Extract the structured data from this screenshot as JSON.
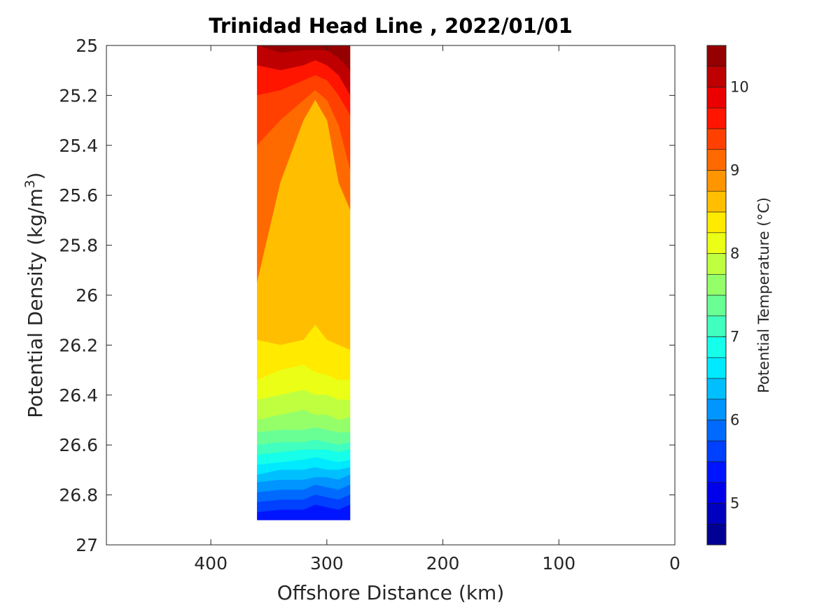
{
  "chart_data": {
    "type": "heatmap",
    "subtype": "filled-contour",
    "title": "Trinidad Head Line , 2022/01/01",
    "xlabel": "Offshore Distance (km)",
    "ylabel": "Potential Density (kg/m",
    "ylabel_superscript": "3",
    "ylabel_suffix": ")",
    "xlim": [
      490,
      0
    ],
    "ylim": [
      25,
      27
    ],
    "x_reversed": true,
    "y_reversed": true,
    "xticks": [
      400,
      300,
      200,
      100,
      0
    ],
    "yticks": [
      25,
      25.2,
      25.4,
      25.6,
      25.8,
      26,
      26.2,
      26.4,
      26.6,
      26.8,
      27
    ],
    "xticklabels": [
      "400",
      "300",
      "200",
      "100",
      "0"
    ],
    "yticklabels": [
      "25",
      "25.2",
      "25.4",
      "25.6",
      "25.8",
      "26",
      "26.2",
      "26.4",
      "26.6",
      "26.8",
      "27"
    ],
    "data_extent": {
      "x": [
        360,
        280
      ],
      "y": [
        25,
        26.9
      ]
    },
    "colorbar": {
      "label": "Potential Temperature (°C)",
      "range": [
        4.5,
        10.5
      ],
      "step": 0.25,
      "ticks": [
        5,
        6,
        7,
        8,
        9,
        10
      ],
      "ticklabels": [
        "5",
        "6",
        "7",
        "8",
        "9",
        "10"
      ],
      "colormap": "jet"
    },
    "grid": false,
    "contour_fields": [
      {
        "levels_top_to_bottom": [
          10.4,
          10.0,
          9.7,
          9.3,
          9.0,
          8.7,
          8.5,
          8.25,
          8.05,
          7.8,
          7.55,
          7.3,
          7.05,
          6.8,
          6.55,
          6.3,
          6.05,
          5.8,
          5.55,
          5.3,
          5.05
        ],
        "description": "isotherm density at profile columns x=[360,340,320,310,300,290,280]",
        "profiles": [
          {
            "temp": 10.4,
            "density": [
              25.0,
              25.0,
              25.0,
              25.0,
              25.0,
              25.0,
              25.0
            ]
          },
          {
            "temp": 10.0,
            "density": [
              25.0,
              25.03,
              25.02,
              25.02,
              25.02,
              25.05,
              25.1
            ]
          },
          {
            "temp": 9.7,
            "density": [
              25.08,
              25.1,
              25.08,
              25.06,
              25.08,
              25.12,
              25.2
            ]
          },
          {
            "temp": 9.3,
            "density": [
              25.2,
              25.18,
              25.14,
              25.12,
              25.14,
              25.2,
              25.28
            ]
          },
          {
            "temp": 9.0,
            "density": [
              25.4,
              25.3,
              25.22,
              25.18,
              25.22,
              25.32,
              25.5
            ]
          },
          {
            "temp": 8.7,
            "density": [
              25.95,
              25.55,
              25.3,
              25.22,
              25.3,
              25.55,
              25.66
            ]
          },
          {
            "temp": 8.5,
            "density": [
              26.1,
              26.0,
              25.6,
              25.25,
              25.4,
              25.8,
              25.95
            ]
          },
          {
            "temp": 8.25,
            "density": [
              26.18,
              26.2,
              26.18,
              26.12,
              26.18,
              26.2,
              26.22
            ]
          },
          {
            "temp": 8.05,
            "density": [
              26.34,
              26.3,
              26.28,
              26.31,
              26.32,
              26.34,
              26.34
            ]
          },
          {
            "temp": 7.8,
            "density": [
              26.42,
              26.4,
              26.38,
              26.4,
              26.4,
              26.42,
              26.42
            ]
          },
          {
            "temp": 7.55,
            "density": [
              26.5,
              26.48,
              26.46,
              26.48,
              26.48,
              26.5,
              26.49
            ]
          },
          {
            "temp": 7.3,
            "density": [
              26.55,
              26.54,
              26.54,
              26.53,
              26.54,
              26.55,
              26.55
            ]
          },
          {
            "temp": 7.05,
            "density": [
              26.6,
              26.59,
              26.59,
              26.58,
              26.59,
              26.6,
              26.59
            ]
          },
          {
            "temp": 6.8,
            "density": [
              26.64,
              26.63,
              26.62,
              26.62,
              26.62,
              26.63,
              26.62
            ]
          },
          {
            "temp": 6.55,
            "density": [
              26.68,
              26.67,
              26.66,
              26.65,
              26.66,
              26.67,
              26.66
            ]
          },
          {
            "temp": 6.3,
            "density": [
              26.72,
              26.7,
              26.7,
              26.69,
              26.7,
              26.7,
              26.69
            ]
          },
          {
            "temp": 6.05,
            "density": [
              26.75,
              26.74,
              26.74,
              26.73,
              26.73,
              26.74,
              26.72
            ]
          },
          {
            "temp": 5.8,
            "density": [
              26.79,
              26.78,
              26.78,
              26.76,
              26.77,
              26.78,
              26.76
            ]
          },
          {
            "temp": 5.55,
            "density": [
              26.83,
              26.82,
              26.82,
              26.8,
              26.81,
              26.82,
              26.8
            ]
          },
          {
            "temp": 5.3,
            "density": [
              26.87,
              26.86,
              26.86,
              26.84,
              26.85,
              26.86,
              26.84
            ]
          },
          {
            "temp": 5.05,
            "density": [
              26.9,
              26.9,
              26.9,
              26.9,
              26.9,
              26.9,
              26.9
            ]
          }
        ],
        "columns_x": [
          360,
          340,
          320,
          310,
          300,
          290,
          280
        ]
      }
    ]
  }
}
